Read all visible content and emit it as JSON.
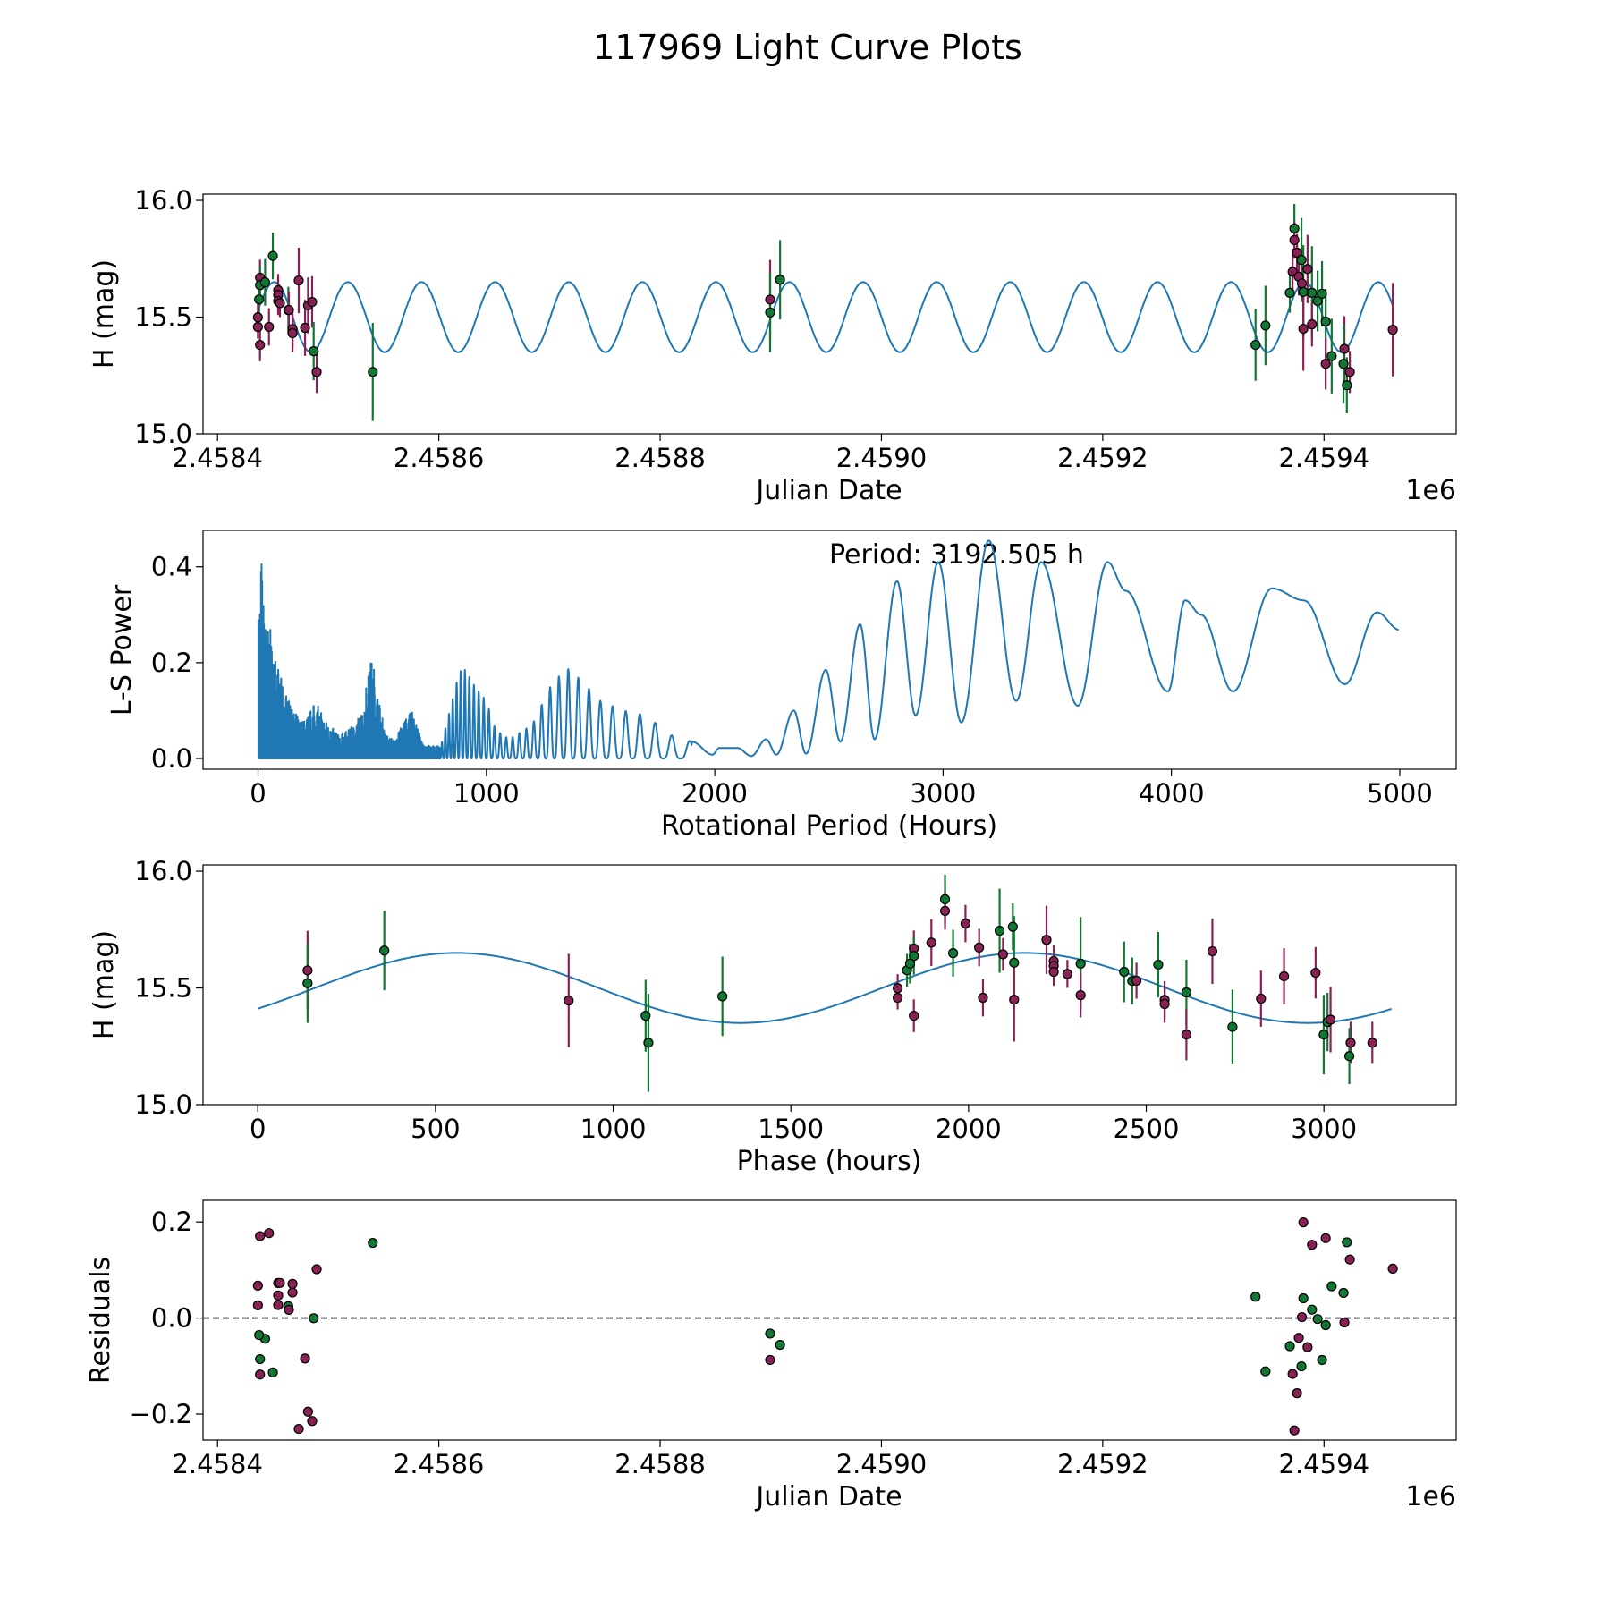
{
  "title": "117969 Light Curve Plots",
  "colors": {
    "series_a": "#882255",
    "series_b": "#117733",
    "model": "#1f77b4",
    "axis": "#000000"
  },
  "chart_data": [
    {
      "id": "lightcurve",
      "type": "scatter",
      "xlabel": "Julian Date",
      "ylabel": "H (mag)",
      "x_offset_label": "1e6",
      "x_reference_jd": 2458400,
      "xlim_days": [
        -13.1,
        1119.4
      ],
      "ylim": [
        15.0,
        16.027
      ],
      "xticks": [
        {
          "v": 0,
          "label": "2.4584"
        },
        {
          "v": 200,
          "label": "2.4586"
        },
        {
          "v": 400,
          "label": "2.4588"
        },
        {
          "v": 600,
          "label": "2.4590"
        },
        {
          "v": 800,
          "label": "2.4592"
        },
        {
          "v": 1000,
          "label": "2.4594"
        }
      ],
      "yticks": [
        {
          "v": 15.0,
          "label": "15.0"
        },
        {
          "v": 15.5,
          "label": "15.5"
        },
        {
          "v": 16.0,
          "label": "16.0"
        }
      ],
      "model_xrange_days": [
        36,
        1062
      ]
    },
    {
      "id": "periodogram",
      "type": "line",
      "xlabel": "Rotational Period (Hours)",
      "ylabel": "L-S Power",
      "annotation": "Period: 3192.505 h",
      "xlim": [
        -241,
        5247
      ],
      "ylim": [
        -0.0224,
        0.476
      ],
      "xticks": [
        {
          "v": 0,
          "label": "0"
        },
        {
          "v": 1000,
          "label": "1000"
        },
        {
          "v": 2000,
          "label": "2000"
        },
        {
          "v": 3000,
          "label": "3000"
        },
        {
          "v": 4000,
          "label": "4000"
        },
        {
          "v": 5000,
          "label": "5000"
        }
      ],
      "yticks": [
        {
          "v": 0,
          "label": "0.0"
        },
        {
          "v": 0.2,
          "label": "0.2"
        },
        {
          "v": 0.4,
          "label": "0.4"
        }
      ],
      "dense_envelope": [
        [
          0,
          0.3
        ],
        [
          6,
          0.38
        ],
        [
          10,
          0.4
        ],
        [
          15,
          0.455
        ],
        [
          22,
          0.36
        ],
        [
          30,
          0.3
        ],
        [
          50,
          0.28
        ],
        [
          80,
          0.2
        ],
        [
          100,
          0.17
        ],
        [
          150,
          0.1
        ],
        [
          200,
          0.08
        ],
        [
          250,
          0.12
        ],
        [
          300,
          0.08
        ],
        [
          350,
          0.05
        ],
        [
          400,
          0.06
        ],
        [
          460,
          0.1
        ],
        [
          480,
          0.18
        ],
        [
          500,
          0.22
        ],
        [
          530,
          0.12
        ],
        [
          560,
          0.05
        ],
        [
          600,
          0.04
        ],
        [
          650,
          0.09
        ],
        [
          680,
          0.1
        ],
        [
          720,
          0.03
        ],
        [
          800,
          0.025
        ],
        [
          850,
          0.12
        ],
        [
          880,
          0.18
        ],
        [
          900,
          0.19
        ],
        [
          950,
          0.15
        ],
        [
          1000,
          0.12
        ],
        [
          1040,
          0.06
        ],
        [
          1100,
          0.04
        ],
        [
          1200,
          0.07
        ],
        [
          1280,
          0.15
        ],
        [
          1350,
          0.19
        ],
        [
          1400,
          0.17
        ],
        [
          1500,
          0.12
        ],
        [
          1600,
          0.1
        ],
        [
          1700,
          0.09
        ],
        [
          1800,
          0.05
        ],
        [
          1900,
          0.035
        ]
      ],
      "smooth_points": [
        [
          1900,
          0.035
        ],
        [
          1990,
          0.008
        ],
        [
          2020,
          0.022
        ],
        [
          2100,
          0.022
        ],
        [
          2160,
          0.005
        ],
        [
          2225,
          0.04
        ],
        [
          2270,
          0.008
        ],
        [
          2346,
          0.1
        ],
        [
          2400,
          0.01
        ],
        [
          2486,
          0.185
        ],
        [
          2550,
          0.035
        ],
        [
          2636,
          0.28
        ],
        [
          2700,
          0.04
        ],
        [
          2798,
          0.37
        ],
        [
          2880,
          0.09
        ],
        [
          2979,
          0.41
        ],
        [
          3080,
          0.075
        ],
        [
          3200,
          0.455
        ],
        [
          3320,
          0.12
        ],
        [
          3430,
          0.41
        ],
        [
          3590,
          0.11
        ],
        [
          3720,
          0.41
        ],
        [
          3800,
          0.35
        ],
        [
          3985,
          0.14
        ],
        [
          4060,
          0.33
        ],
        [
          4130,
          0.3
        ],
        [
          4270,
          0.14
        ],
        [
          4440,
          0.355
        ],
        [
          4580,
          0.33
        ],
        [
          4760,
          0.155
        ],
        [
          4900,
          0.305
        ],
        [
          5000,
          0.268
        ]
      ]
    },
    {
      "id": "phased",
      "type": "scatter",
      "xlabel": "Phase (hours)",
      "ylabel": "H (mag)",
      "xlim": [
        -154,
        3372
      ],
      "ylim": [
        15.0,
        16.027
      ],
      "xticks": [
        {
          "v": 0,
          "label": "0"
        },
        {
          "v": 500,
          "label": "500"
        },
        {
          "v": 1000,
          "label": "1000"
        },
        {
          "v": 1500,
          "label": "1500"
        },
        {
          "v": 2000,
          "label": "2000"
        },
        {
          "v": 2500,
          "label": "2500"
        },
        {
          "v": 3000,
          "label": "3000"
        }
      ],
      "yticks": [
        {
          "v": 15.0,
          "label": "15.0"
        },
        {
          "v": 15.5,
          "label": "15.5"
        },
        {
          "v": 16.0,
          "label": "16.0"
        }
      ]
    },
    {
      "id": "residuals",
      "type": "scatter",
      "xlabel": "Julian Date",
      "ylabel": "Residuals",
      "x_offset_label": "1e6",
      "xlim_days": [
        -13.1,
        1119.4
      ],
      "ylim": [
        -0.254,
        0.245
      ],
      "xticks": [
        {
          "v": 0,
          "label": "2.4584"
        },
        {
          "v": 200,
          "label": "2.4586"
        },
        {
          "v": 400,
          "label": "2.4588"
        },
        {
          "v": 600,
          "label": "2.4590"
        },
        {
          "v": 800,
          "label": "2.4592"
        },
        {
          "v": 1000,
          "label": "2.4594"
        }
      ],
      "yticks": [
        {
          "v": -0.2,
          "label": "−0.2"
        },
        {
          "v": 0.0,
          "label": "0.0"
        },
        {
          "v": 0.2,
          "label": "0.2"
        }
      ]
    }
  ],
  "model": {
    "period_h": 3192.505,
    "mean": 15.5,
    "amplitude": 0.15,
    "epoch_day": 94.5,
    "peak_phase_h": 560
  },
  "observations": {
    "columns": [
      "day_since_2458400",
      "mag",
      "err",
      "series"
    ],
    "rows": [
      [
        50.0,
        15.762,
        0.1,
        "b"
      ],
      [
        38.4,
        15.669,
        0.077,
        "a"
      ],
      [
        38.4,
        15.637,
        0.08,
        "b"
      ],
      [
        43.0,
        15.649,
        0.1,
        "b"
      ],
      [
        37.6,
        15.576,
        0.07,
        "b"
      ],
      [
        36.5,
        15.499,
        0.06,
        "a"
      ],
      [
        36.5,
        15.458,
        0.05,
        "a"
      ],
      [
        38.4,
        15.381,
        0.07,
        "a"
      ],
      [
        46.5,
        15.458,
        0.08,
        "a"
      ],
      [
        54.8,
        15.615,
        0.07,
        "a"
      ],
      [
        54.8,
        15.595,
        0.07,
        "a"
      ],
      [
        54.8,
        15.569,
        0.06,
        "a"
      ],
      [
        56.4,
        15.56,
        0.06,
        "a"
      ],
      [
        64.0,
        15.53,
        0.1,
        "b"
      ],
      [
        64.5,
        15.531,
        0.077,
        "a"
      ],
      [
        67.8,
        15.449,
        0.08,
        "a"
      ],
      [
        67.8,
        15.431,
        0.08,
        "a"
      ],
      [
        73.4,
        15.657,
        0.14,
        "a"
      ],
      [
        79.1,
        15.454,
        0.12,
        "a"
      ],
      [
        81.8,
        15.55,
        0.12,
        "a"
      ],
      [
        85.5,
        15.565,
        0.11,
        "a"
      ],
      [
        86.9,
        15.354,
        0.125,
        "b"
      ],
      [
        89.6,
        15.265,
        0.09,
        "a"
      ],
      [
        140.3,
        15.265,
        0.21,
        "b"
      ],
      [
        499.4,
        15.575,
        0.17,
        "a"
      ],
      [
        499.4,
        15.52,
        0.17,
        "b"
      ],
      [
        508.4,
        15.66,
        0.17,
        "b"
      ],
      [
        938.1,
        15.381,
        0.154,
        "b"
      ],
      [
        947.1,
        15.464,
        0.17,
        "b"
      ],
      [
        969.1,
        15.604,
        0.085,
        "b"
      ],
      [
        971.6,
        15.694,
        0.1,
        "a"
      ],
      [
        973.2,
        15.88,
        0.105,
        "b"
      ],
      [
        973.2,
        15.83,
        0.08,
        "a"
      ],
      [
        975.6,
        15.776,
        0.08,
        "a"
      ],
      [
        977.2,
        15.673,
        0.08,
        "a"
      ],
      [
        979.6,
        15.745,
        0.18,
        "b"
      ],
      [
        980.0,
        15.644,
        0.07,
        "a"
      ],
      [
        981.3,
        15.608,
        0.2,
        "b"
      ],
      [
        981.3,
        15.45,
        0.18,
        "a"
      ],
      [
        985.1,
        15.706,
        0.146,
        "a"
      ],
      [
        989.1,
        15.604,
        0.2,
        "b"
      ],
      [
        989.1,
        15.469,
        0.095,
        "a"
      ],
      [
        994.2,
        15.569,
        0.13,
        "b"
      ],
      [
        998.2,
        15.6,
        0.14,
        "b"
      ],
      [
        1001.5,
        15.481,
        0.14,
        "b"
      ],
      [
        1001.5,
        15.3,
        0.11,
        "a"
      ],
      [
        1006.9,
        15.333,
        0.16,
        "b"
      ],
      [
        1018.4,
        15.364,
        0.14,
        "a"
      ],
      [
        1017.6,
        15.3,
        0.17,
        "b"
      ],
      [
        1023.3,
        15.265,
        0.09,
        "a"
      ],
      [
        1020.6,
        15.208,
        0.12,
        "b"
      ],
      [
        1062.1,
        15.446,
        0.2,
        "a"
      ]
    ]
  }
}
